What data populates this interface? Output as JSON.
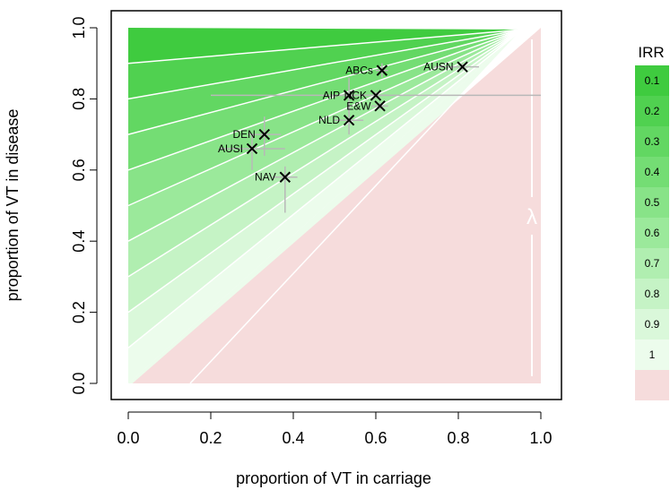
{
  "chart_data": {
    "type": "scatter",
    "xlabel": "proportion of VT in carriage",
    "ylabel": "proportion of VT in disease",
    "xlim": [
      0,
      1
    ],
    "ylim": [
      0,
      1
    ],
    "x_ticks": [
      "0.0",
      "0.2",
      "0.4",
      "0.6",
      "0.8",
      "1.0"
    ],
    "y_ticks": [
      "0.0",
      "0.2",
      "0.4",
      "0.6",
      "0.8",
      "1.0"
    ],
    "grid": false,
    "points": [
      {
        "label": "ABCs",
        "x": 0.615,
        "y": 0.88,
        "xerr": [
          0.6,
          0.63
        ],
        "yerr": [
          0.86,
          0.9
        ]
      },
      {
        "label": "AUSN",
        "x": 0.81,
        "y": 0.89,
        "xerr": [
          0.74,
          0.85
        ],
        "yerr": [
          0.88,
          0.9
        ]
      },
      {
        "label": "AIP",
        "x": 0.535,
        "y": 0.81,
        "xerr": [
          0.2,
          0.63
        ],
        "yerr": [
          0.76,
          0.86
        ]
      },
      {
        "label": "NCK",
        "x": 0.6,
        "y": 0.81,
        "xerr": [
          0.5,
          1.0
        ],
        "yerr": [
          0.8,
          0.82
        ]
      },
      {
        "label": "E&W",
        "x": 0.61,
        "y": 0.78,
        "xerr": [
          0.59,
          0.63
        ],
        "yerr": [
          0.77,
          0.79
        ]
      },
      {
        "label": "NLD",
        "x": 0.535,
        "y": 0.74,
        "xerr": [
          0.5,
          0.57
        ],
        "yerr": [
          0.7,
          0.78
        ]
      },
      {
        "label": "DEN",
        "x": 0.33,
        "y": 0.7,
        "xerr": [
          0.29,
          0.37
        ],
        "yerr": [
          0.64,
          0.75
        ]
      },
      {
        "label": "AUSI",
        "x": 0.3,
        "y": 0.66,
        "xerr": [
          0.22,
          0.38
        ],
        "yerr": [
          0.6,
          0.7
        ]
      },
      {
        "label": "NAV",
        "x": 0.38,
        "y": 0.58,
        "xerr": [
          0.35,
          0.41
        ],
        "yerr": [
          0.48,
          0.61
        ]
      }
    ],
    "annotation": "λ",
    "legend": {
      "title": "IRR",
      "placement": "right",
      "entries": [
        {
          "label": "0.1",
          "color": "#3fcb3f"
        },
        {
          "label": "0.2",
          "color": "#50d150"
        },
        {
          "label": "0.3",
          "color": "#62d762"
        },
        {
          "label": "0.4",
          "color": "#74dd74"
        },
        {
          "label": "0.5",
          "color": "#88e388"
        },
        {
          "label": "0.6",
          "color": "#9be99b"
        },
        {
          "label": "0.7",
          "color": "#b0eeb0"
        },
        {
          "label": "0.8",
          "color": "#c5f3c5"
        },
        {
          "label": "0.9",
          "color": "#daf8da"
        },
        {
          "label": "1",
          "color": "#ecfcec"
        },
        {
          "label": "",
          "color": "#f6dcdc"
        }
      ]
    }
  }
}
